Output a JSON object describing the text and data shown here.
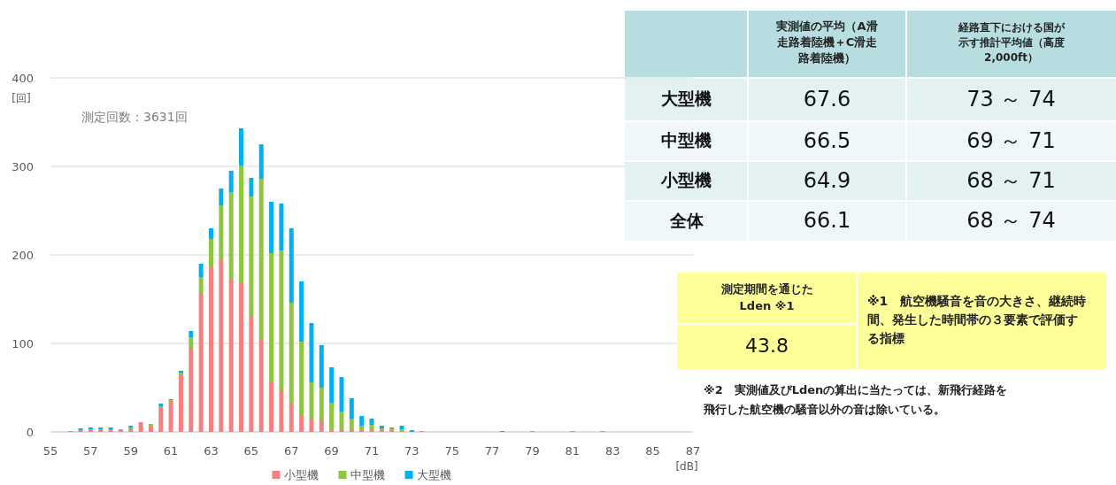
{
  "chart_data": [
    {
      "type": "bar",
      "stacked": true,
      "xlabel": "[dB]",
      "ylabel": "[回]",
      "annotations": [
        "測定回数：3631回"
      ],
      "x": [
        56,
        56.5,
        57,
        57.5,
        58,
        58.5,
        59,
        59.5,
        60,
        60.5,
        61,
        61.5,
        62,
        62.5,
        63,
        63.5,
        64,
        64.5,
        65,
        65.5,
        66,
        66.5,
        67,
        67.5,
        68,
        68.5,
        69,
        69.5,
        70,
        70.5,
        71,
        71.5,
        72,
        72.5,
        73,
        73.5,
        74,
        74.5,
        75,
        75.5,
        76,
        76.5,
        77,
        77.5,
        78,
        78.5,
        79,
        79.5,
        80,
        80.5,
        81,
        81.5,
        82,
        82.5
      ],
      "series": [
        {
          "name": "小型機",
          "color": "#f77f80",
          "values": [
            1,
            2,
            3,
            3,
            3,
            3,
            3,
            11,
            6,
            29,
            35,
            64,
            95,
            156,
            187,
            195,
            172,
            169,
            130,
            104,
            56,
            47,
            33,
            18,
            15,
            12,
            3,
            3,
            3,
            2,
            3,
            2,
            2,
            1,
            0,
            0,
            0,
            0,
            0,
            0,
            0,
            0,
            0,
            0,
            0,
            0,
            1,
            0,
            0,
            0,
            1,
            0,
            0,
            1
          ]
        },
        {
          "name": "中型機",
          "color": "#8dc63f",
          "values": [
            0,
            0,
            0,
            0,
            0,
            0,
            2,
            0,
            3,
            0,
            1,
            3,
            12,
            19,
            31,
            61,
            99,
            132,
            136,
            182,
            146,
            158,
            113,
            84,
            41,
            38,
            30,
            20,
            12,
            5,
            5,
            2,
            2,
            2,
            0,
            1,
            0,
            0,
            0,
            0,
            0,
            0,
            0,
            0,
            0,
            0,
            0,
            0,
            0,
            0,
            0,
            0,
            0,
            0
          ]
        },
        {
          "name": "大型機",
          "color": "#00b0f0",
          "values": [
            0,
            2,
            2,
            2,
            2,
            0,
            2,
            0,
            0,
            3,
            1,
            2,
            7,
            15,
            12,
            19,
            24,
            42,
            21,
            39,
            58,
            53,
            84,
            68,
            67,
            48,
            40,
            39,
            23,
            11,
            7,
            3,
            1,
            4,
            2,
            0,
            0,
            0,
            0,
            0,
            0,
            0,
            0,
            1,
            0,
            0,
            0,
            0,
            0,
            0,
            0,
            0,
            0,
            0
          ]
        }
      ],
      "xlim": [
        55,
        87
      ],
      "xticks": [
        55,
        57,
        59,
        61,
        63,
        65,
        67,
        69,
        71,
        73,
        75,
        77,
        79,
        81,
        83,
        85,
        87
      ],
      "ylim": [
        0,
        400
      ],
      "yticks": [
        0,
        100,
        200,
        300,
        400
      ],
      "grid": "y",
      "legend": "bottom"
    },
    {
      "type": "other",
      "annotations": [
        "実測値の平均（A滑走路着陸機＋C滑走路着陸機）",
        "経路直下における国が示す推計平均値（高度2,000ft）",
        "大型機",
        "67.6",
        "73 ～ 74",
        "中型機",
        "66.5",
        "69 ～ 71",
        "小型機",
        "64.9",
        "68 ～ 71",
        "全体",
        "66.1",
        "68 ～ 74",
        "測定期間を通じたLden ※1",
        "43.8",
        "※1　航空機騒音を音の大きさ、継続時間、発生した時間帯の３要素で評価する指標",
        "※2　実測値及びLdenの算出に当たっては、新飛行経路を飛行した航空機の騒音以外の音は除いている。"
      ]
    }
  ]
}
